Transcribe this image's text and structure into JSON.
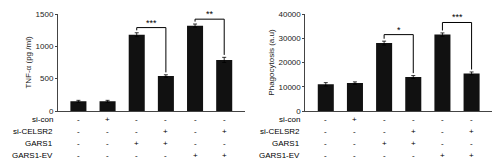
{
  "chart_data": [
    {
      "type": "bar",
      "ylabel": "TNF-α (pg /ml)",
      "categories": [
        null,
        null,
        null,
        null,
        null,
        null
      ],
      "values": [
        150,
        150,
        1180,
        540,
        1320,
        790
      ],
      "errors": [
        15,
        15,
        30,
        20,
        25,
        40
      ],
      "color": "#111111",
      "ylim": [
        0,
        1500
      ],
      "yticks": [
        0,
        500,
        1000,
        1500
      ],
      "grid": false,
      "tick_labels": "y",
      "annotations": [
        {
          "x1": 2,
          "x2": 3,
          "y": 1290,
          "label": "***"
        },
        {
          "x1": 4,
          "x2": 5,
          "y": 1420,
          "label": "**"
        }
      ],
      "table_rows": [
        "si-con",
        "si-CELSR2",
        "GARS1",
        "GARS1-EV"
      ],
      "table_data": [
        [
          "-",
          "+",
          "-",
          "-",
          "-",
          "-"
        ],
        [
          "-",
          "-",
          "-",
          "+",
          "-",
          "+"
        ],
        [
          "-",
          "-",
          "+",
          "+",
          "-",
          "-"
        ],
        [
          "-",
          "-",
          "-",
          "-",
          "+",
          "+"
        ]
      ]
    },
    {
      "type": "bar",
      "ylabel": "Phagocytosis (a.u)",
      "categories": [
        null,
        null,
        null,
        null,
        null,
        null
      ],
      "values": [
        11000,
        11500,
        28000,
        14000,
        31500,
        15500
      ],
      "errors": [
        700,
        500,
        800,
        600,
        700,
        600
      ],
      "color": "#111111",
      "ylim": [
        0,
        40000
      ],
      "yticks": [
        0,
        10000,
        20000,
        30000,
        40000
      ],
      "grid": false,
      "tick_labels": "y",
      "annotations": [
        {
          "x1": 2,
          "x2": 3,
          "y": 31500,
          "label": "*"
        },
        {
          "x1": 4,
          "x2": 5,
          "y": 36500,
          "label": "***"
        }
      ],
      "table_rows": [
        "si-con",
        "si-CELSR2",
        "GARS1",
        "GARS1-EV"
      ],
      "table_data": [
        [
          "-",
          "+",
          "-",
          "-",
          "-",
          "-"
        ],
        [
          "-",
          "-",
          "-",
          "+",
          "-",
          "+"
        ],
        [
          "-",
          "-",
          "+",
          "+",
          "-",
          "-"
        ],
        [
          "-",
          "-",
          "-",
          "-",
          "+",
          "+"
        ]
      ]
    }
  ]
}
